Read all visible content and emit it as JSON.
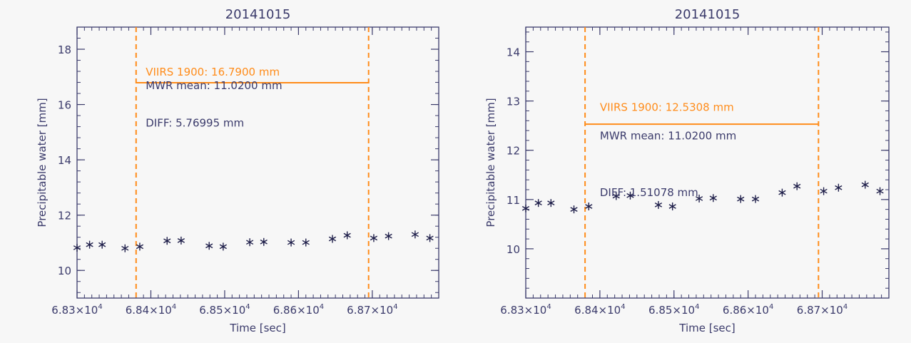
{
  "colors": {
    "axis": "#3b3b6b",
    "text": "#3b3b6b",
    "accent": "#ff8c1a",
    "marker": "#1f1f4a",
    "background": "#f7f7f7"
  },
  "chart_data": [
    {
      "type": "scatter",
      "title": "20141015",
      "xlabel": "Time [sec]",
      "ylabel": "Precipitable water [mm]",
      "xlim": [
        68300,
        68790
      ],
      "ylim": [
        9,
        18.8
      ],
      "xticks": [
        68300,
        68400,
        68500,
        68600,
        68700
      ],
      "xtick_labels": [
        {
          "base": "6.83×10",
          "exp": "4"
        },
        {
          "base": "6.84×10",
          "exp": "4"
        },
        {
          "base": "6.85×10",
          "exp": "4"
        },
        {
          "base": "6.86×10",
          "exp": "4"
        },
        {
          "base": "6.87×10",
          "exp": "4"
        }
      ],
      "yticks": [
        10,
        12,
        14,
        16,
        18
      ],
      "ytick_labels": [
        "10",
        "12",
        "14",
        "16",
        "18"
      ],
      "grid": false,
      "series": [
        {
          "marker": "asterisk",
          "x": [
            68300,
            68317,
            68334,
            68365,
            68385,
            68422,
            68441,
            68479,
            68498,
            68534,
            68553,
            68590,
            68610,
            68646,
            68666,
            68702,
            68722,
            68758,
            68778
          ],
          "y": [
            10.82,
            10.93,
            10.93,
            10.8,
            10.86,
            11.07,
            11.08,
            10.89,
            10.86,
            11.02,
            11.03,
            11.01,
            11.01,
            11.14,
            11.27,
            11.17,
            11.24,
            11.3,
            11.17
          ]
        }
      ],
      "vlines": [
        68380,
        68695
      ],
      "hline": {
        "y": 16.79,
        "x0": 68380,
        "x1": 68695
      },
      "annotations": [
        {
          "text": "VIIRS 1900: 16.7900 mm",
          "x": 68393,
          "y": 17.05,
          "accent": true
        },
        {
          "text": "MWR mean: 11.0200 mm",
          "x": 68393,
          "y": 16.55,
          "accent": false
        },
        {
          "text": "DIFF: 5.76995 mm",
          "x": 68393,
          "y": 15.2,
          "accent": false
        }
      ]
    },
    {
      "type": "scatter",
      "title": "20141015",
      "xlabel": "Time [sec]",
      "ylabel": "Precipitable water [mm]",
      "xlim": [
        68300,
        68790
      ],
      "ylim": [
        9,
        14.5
      ],
      "xticks": [
        68300,
        68400,
        68500,
        68600,
        68700
      ],
      "xtick_labels": [
        {
          "base": "6.83×10",
          "exp": "4"
        },
        {
          "base": "6.84×10",
          "exp": "4"
        },
        {
          "base": "6.85×10",
          "exp": "4"
        },
        {
          "base": "6.86×10",
          "exp": "4"
        },
        {
          "base": "6.87×10",
          "exp": "4"
        }
      ],
      "yticks": [
        10,
        11,
        12,
        13,
        14
      ],
      "ytick_labels": [
        "10",
        "11",
        "12",
        "13",
        "14"
      ],
      "grid": false,
      "series": [
        {
          "marker": "asterisk",
          "x": [
            68300,
            68317,
            68334,
            68365,
            68385,
            68422,
            68441,
            68479,
            68498,
            68534,
            68553,
            68590,
            68610,
            68646,
            68666,
            68702,
            68722,
            68758,
            68778
          ],
          "y": [
            10.82,
            10.93,
            10.93,
            10.8,
            10.86,
            11.07,
            11.08,
            10.89,
            10.86,
            11.02,
            11.03,
            11.01,
            11.01,
            11.14,
            11.27,
            11.17,
            11.24,
            11.3,
            11.17
          ]
        }
      ],
      "vlines": [
        68380,
        68695
      ],
      "hline": {
        "y": 12.53,
        "x0": 68380,
        "x1": 68695
      },
      "annotations": [
        {
          "text": "VIIRS 1900: 12.5308 mm",
          "x": 68400,
          "y": 12.8,
          "accent": true
        },
        {
          "text": "MWR mean: 11.0200 mm",
          "x": 68400,
          "y": 12.22,
          "accent": false
        },
        {
          "text": "DIFF: 1.51078 mm",
          "x": 68400,
          "y": 11.07,
          "accent": false
        }
      ]
    }
  ]
}
